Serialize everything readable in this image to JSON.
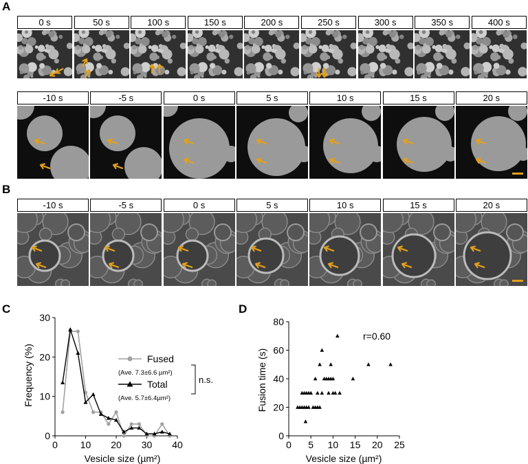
{
  "panel_labels": {
    "A": "A",
    "B": "B",
    "C": "C",
    "D": "D"
  },
  "panelA": {
    "row1_times": [
      "0 s",
      "50 s",
      "100 s",
      "150 s",
      "200 s",
      "250 s",
      "300 s",
      "350 s",
      "400 s"
    ],
    "row2_times": [
      "-10 s",
      "-5 s",
      "0 s",
      "5 s",
      "10 s",
      "15 s",
      "20 s"
    ]
  },
  "panelB": {
    "times": [
      "-10 s",
      "-5 s",
      "0 s",
      "5 s",
      "10 s",
      "15 s",
      "20 s"
    ]
  },
  "colors": {
    "arrow": "#e3a01b",
    "frame_bg": "#2b2b2b",
    "fused": "#a0a0a0",
    "total": "#000000",
    "scalebar": "#e3a01b"
  },
  "chart_data": [
    {
      "panel": "C",
      "type": "line",
      "xlabel": "Vesicle size (µm²)",
      "ylabel": "Frequency (%)",
      "xlim": [
        0,
        40
      ],
      "ylim": [
        0,
        30
      ],
      "xticks": [
        0,
        10,
        20,
        30,
        40
      ],
      "yticks": [
        0,
        10,
        20,
        30
      ],
      "series": [
        {
          "name": "Fused",
          "marker": "circle",
          "x": [
            2.5,
            5,
            7.5,
            10,
            12.5,
            15,
            17.5,
            20,
            22.5,
            25,
            27.5,
            30,
            32.5,
            35,
            37.5
          ],
          "y": [
            6,
            26.5,
            26.5,
            11,
            6,
            6,
            3,
            6,
            0,
            3,
            3,
            0,
            0,
            3,
            0
          ]
        },
        {
          "name": "Total",
          "marker": "triangle",
          "x": [
            2.5,
            5,
            7.5,
            10,
            12.5,
            15,
            17.5,
            20,
            22.5,
            25,
            27.5,
            30,
            32.5,
            35,
            37.5
          ],
          "y": [
            13.5,
            27,
            21,
            8.5,
            10.5,
            5.5,
            4.5,
            4,
            1,
            2,
            2,
            0.5,
            0.5,
            1,
            0.5
          ]
        }
      ],
      "legend": {
        "fused_label": "Fused",
        "fused_ave": "(Ave. 7.3±6.6 µm²)",
        "total_label": "Total",
        "total_ave": "(Ave. 5.7±6.4µm²)",
        "significance": "n.s."
      }
    },
    {
      "panel": "D",
      "type": "scatter",
      "xlabel": "Vesicle size (µm²)",
      "ylabel": "Fusion time (s)",
      "xlim": [
        0,
        25
      ],
      "ylim": [
        0,
        80
      ],
      "xticks": [
        0,
        5,
        10,
        15,
        20,
        25
      ],
      "yticks": [
        0,
        20,
        40,
        60,
        80
      ],
      "annotation": "r=0.60",
      "points": [
        [
          2,
          20
        ],
        [
          2.5,
          20
        ],
        [
          3,
          20
        ],
        [
          3,
          30
        ],
        [
          3.5,
          20
        ],
        [
          3.5,
          30
        ],
        [
          3.8,
          10
        ],
        [
          4,
          20
        ],
        [
          4,
          30
        ],
        [
          4.5,
          20
        ],
        [
          4.5,
          30
        ],
        [
          5,
          30
        ],
        [
          5.5,
          20
        ],
        [
          6,
          40
        ],
        [
          6,
          20
        ],
        [
          6.5,
          30
        ],
        [
          6.5,
          20
        ],
        [
          7,
          50
        ],
        [
          7,
          20
        ],
        [
          7.5,
          60
        ],
        [
          7.5,
          30
        ],
        [
          8,
          40
        ],
        [
          8.5,
          40
        ],
        [
          9,
          40
        ],
        [
          9,
          30
        ],
        [
          9.5,
          50
        ],
        [
          9.5,
          40
        ],
        [
          10,
          40
        ],
        [
          10,
          30
        ],
        [
          10.5,
          30
        ],
        [
          11,
          70
        ],
        [
          11.5,
          30
        ],
        [
          14.5,
          40
        ],
        [
          18,
          50
        ],
        [
          23,
          50
        ]
      ]
    }
  ]
}
